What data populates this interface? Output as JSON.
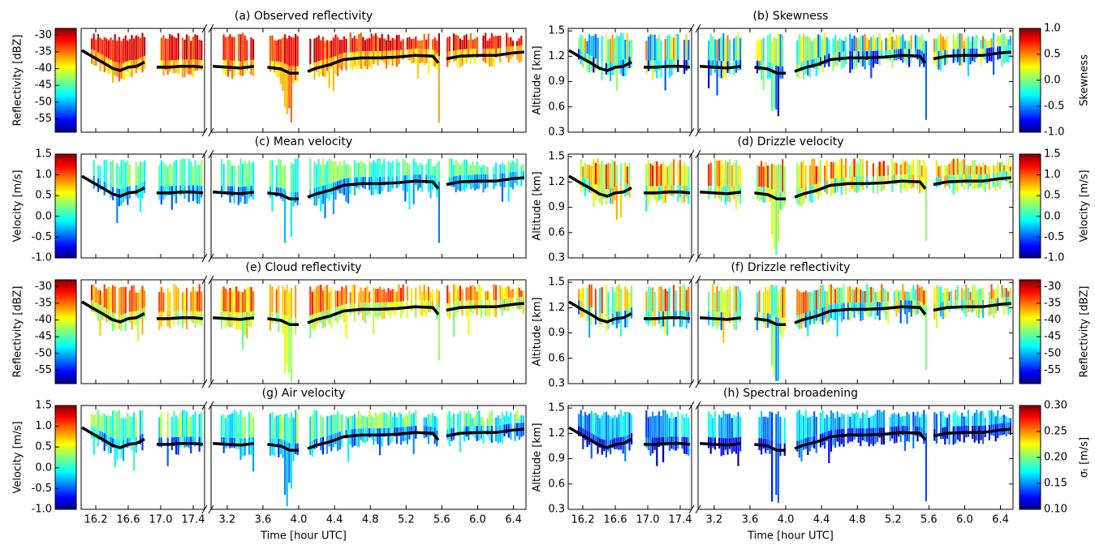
{
  "chart_data": [
    {
      "type": "heatmap",
      "title": "(a) Observed reflectivity",
      "ylim": [
        0.3,
        1.53
      ],
      "colorbar": {
        "label": "Reflectivity [dBZ]",
        "lim": [
          -59,
          -28
        ],
        "ticks": [
          -30,
          -35,
          -40,
          -45,
          -50,
          -55
        ]
      }
    },
    {
      "type": "heatmap",
      "title": "(b) Skewness",
      "ylim": [
        0.3,
        1.53
      ],
      "ylabel": "Altitude [km]",
      "yticks": [
        0.3,
        0.6,
        0.9,
        1.2,
        1.5
      ],
      "colorbar": {
        "label": "Skewness",
        "lim": [
          -1,
          1
        ],
        "ticks": [
          {
            "value": -1,
            "label": "-1.0"
          },
          -0.5,
          {
            "value": 0,
            "label": "0.0"
          },
          0.5,
          {
            "value": 1,
            "label": "1.0"
          }
        ]
      }
    },
    {
      "type": "heatmap",
      "title": "(c) Mean velocity",
      "ylim": [
        0.3,
        1.53
      ],
      "colorbar": {
        "label": "Velocity [m/s]",
        "lim": [
          -1,
          1.5
        ],
        "ticks": [
          {
            "value": -1,
            "label": "-1.0"
          },
          -0.5,
          {
            "value": 0,
            "label": "0.0"
          },
          0.5,
          {
            "value": 1,
            "label": "1.0"
          },
          1.5
        ]
      }
    },
    {
      "type": "heatmap",
      "title": "(d) Drizzle velocity",
      "ylim": [
        0.3,
        1.53
      ],
      "ylabel": "Altitude [km]",
      "yticks": [
        0.3,
        0.6,
        0.9,
        1.2,
        1.5
      ],
      "colorbar": {
        "label": "Velocity [m/s]",
        "lim": [
          -1,
          1.5
        ],
        "ticks": [
          {
            "value": -1,
            "label": "-1.0"
          },
          -0.5,
          {
            "value": 0,
            "label": "0.0"
          },
          0.5,
          {
            "value": 1,
            "label": "1.0"
          },
          1.5
        ]
      }
    },
    {
      "type": "heatmap",
      "title": "(e) Cloud reflectivity",
      "ylim": [
        0.3,
        1.53
      ],
      "colorbar": {
        "label": "Reflectivity [dBZ]",
        "lim": [
          -59,
          -28
        ],
        "ticks": [
          -30,
          -35,
          -40,
          -45,
          -50,
          -55
        ]
      }
    },
    {
      "type": "heatmap",
      "title": "(f) Drizzle reflectivity",
      "ylim": [
        0.3,
        1.53
      ],
      "ylabel": "Altitude [km]",
      "yticks": [
        0.3,
        0.6,
        0.9,
        1.2,
        1.5
      ],
      "colorbar": {
        "label": "Reflectivity [dBZ]",
        "lim": [
          -59,
          -28
        ],
        "ticks": [
          -30,
          -35,
          -40,
          -45,
          -50,
          -55
        ]
      }
    },
    {
      "type": "heatmap",
      "title": "(g) Air velocity",
      "ylim": [
        0.3,
        1.53
      ],
      "xlabel": "Time [hour UTC]",
      "x_segments": [
        {
          "xlim": [
            16.02,
            17.54
          ],
          "xticks": [
            16.2,
            16.6,
            {
              "value": 17,
              "label": "17.0"
            },
            17.4
          ]
        },
        {
          "xlim": [
            3.02,
            6.54
          ],
          "xticks": [
            3.2,
            3.6,
            {
              "value": 4,
              "label": "4.0"
            },
            4.4,
            4.8,
            5.2,
            5.6,
            {
              "value": 6,
              "label": "6.0"
            },
            6.4
          ]
        }
      ],
      "colorbar": {
        "label": "Velocity [m/s]",
        "lim": [
          -1,
          1.5
        ],
        "ticks": [
          {
            "value": -1,
            "label": "-1.0"
          },
          -0.5,
          {
            "value": 0,
            "label": "0.0"
          },
          0.5,
          {
            "value": 1,
            "label": "1.0"
          },
          1.5
        ]
      }
    },
    {
      "type": "heatmap",
      "title": "(h) Spectral broadening",
      "ylim": [
        0.3,
        1.53
      ],
      "ylabel": "Altitude [km]",
      "yticks": [
        0.3,
        0.6,
        0.9,
        1.2,
        1.5
      ],
      "xlabel": "Time [hour UTC]",
      "x_segments": [
        {
          "xlim": [
            16.02,
            17.54
          ],
          "xticks": [
            16.2,
            16.6,
            {
              "value": 17,
              "label": "17.0"
            },
            17.4
          ]
        },
        {
          "xlim": [
            3.02,
            6.54
          ],
          "xticks": [
            3.2,
            3.6,
            {
              "value": 4,
              "label": "4.0"
            },
            4.4,
            4.8,
            5.2,
            5.6,
            {
              "value": 6,
              "label": "6.0"
            },
            6.4
          ]
        }
      ],
      "colorbar": {
        "label": "σₜ [m/s]",
        "lim": [
          0.1,
          0.3
        ],
        "ticks": [
          {
            "value": 0.1,
            "label": "0.10"
          },
          0.15,
          {
            "value": 0.2,
            "label": "0.20"
          },
          0.25,
          {
            "value": 0.3,
            "label": "0.30"
          }
        ]
      }
    }
  ],
  "cloud_base": {
    "x": [
      16.03,
      16.15,
      16.3,
      16.4,
      16.5,
      16.6,
      16.7,
      16.8,
      16.88,
      16.95,
      17.1,
      17.25,
      17.4,
      17.52,
      3.04,
      3.2,
      3.35,
      3.5,
      3.58,
      3.65,
      3.8,
      3.9,
      4.0,
      4.05,
      4.1,
      4.2,
      4.35,
      4.5,
      4.7,
      4.9,
      5.1,
      5.3,
      5.5,
      5.56,
      5.6,
      5.65,
      5.8,
      6.0,
      6.2,
      6.4,
      6.52
    ],
    "values": [
      1.27,
      1.2,
      1.12,
      1.06,
      1.03,
      1.07,
      1.08,
      1.13,
      null,
      1.07,
      1.07,
      1.08,
      1.08,
      1.07,
      1.08,
      1.07,
      1.06,
      1.08,
      null,
      1.07,
      1.05,
      1.0,
      1.0,
      null,
      1.02,
      1.06,
      1.1,
      1.16,
      1.18,
      1.18,
      1.19,
      1.21,
      1.2,
      1.12,
      null,
      1.17,
      1.2,
      1.21,
      1.21,
      1.24,
      1.25
    ]
  }
}
